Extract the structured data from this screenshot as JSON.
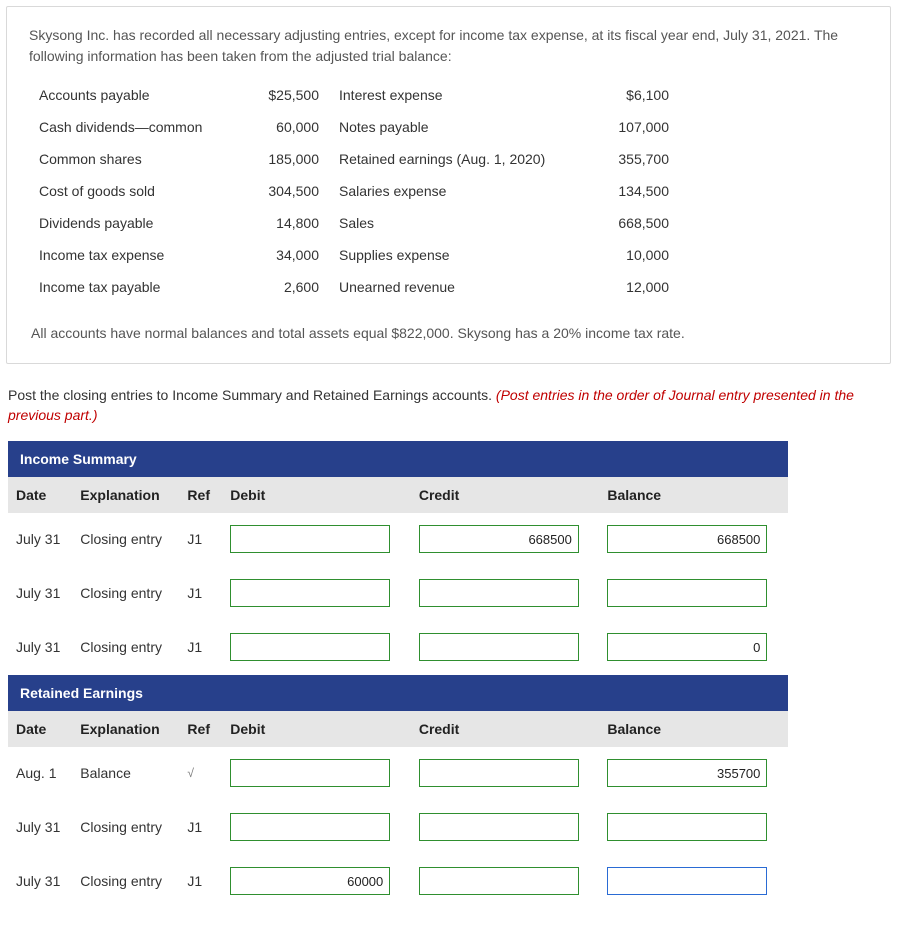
{
  "intro": "Skysong Inc. has recorded all necessary adjusting entries, except for income tax expense, at its fiscal year end, July 31, 2021. The following information has been taken from the adjusted trial balance:",
  "trial_balance": {
    "left": [
      {
        "label": "Accounts payable",
        "value": "$25,500"
      },
      {
        "label": "Cash dividends—common",
        "value": "60,000"
      },
      {
        "label": "Common shares",
        "value": "185,000"
      },
      {
        "label": "Cost of goods sold",
        "value": "304,500"
      },
      {
        "label": "Dividends payable",
        "value": "14,800"
      },
      {
        "label": "Income tax expense",
        "value": "34,000"
      },
      {
        "label": "Income tax payable",
        "value": "2,600"
      }
    ],
    "right": [
      {
        "label": "Interest expense",
        "value": "$6,100"
      },
      {
        "label": "Notes payable",
        "value": "107,000"
      },
      {
        "label": "Retained earnings (Aug. 1, 2020)",
        "value": "355,700"
      },
      {
        "label": "Salaries expense",
        "value": "134,500"
      },
      {
        "label": "Sales",
        "value": "668,500"
      },
      {
        "label": "Supplies expense",
        "value": "10,000"
      },
      {
        "label": "Unearned revenue",
        "value": "12,000"
      }
    ]
  },
  "note": "All accounts have normal balances and total assets equal $822,000. Skysong has a 20% income tax rate.",
  "instruction": {
    "black": "Post the closing entries to Income Summary and Retained Earnings accounts. ",
    "red": "(Post entries in the order of Journal entry presented in the previous part.)"
  },
  "sections": [
    {
      "title": "Income Summary",
      "headers": {
        "date": "Date",
        "expl": "Explanation",
        "ref": "Ref",
        "debit": "Debit",
        "credit": "Credit",
        "balance": "Balance"
      },
      "rows": [
        {
          "date": "July 31",
          "expl": "Closing entry",
          "ref": "J1",
          "debit": "",
          "credit": "668500",
          "balance": "668500",
          "debit_class": "green",
          "credit_class": "green",
          "balance_class": "green"
        },
        {
          "date": "July 31",
          "expl": "Closing entry",
          "ref": "J1",
          "debit": "",
          "credit": "",
          "balance": "",
          "debit_class": "green",
          "credit_class": "green",
          "balance_class": "green"
        },
        {
          "date": "July 31",
          "expl": "Closing entry",
          "ref": "J1",
          "debit": "",
          "credit": "",
          "balance": "0",
          "debit_class": "green",
          "credit_class": "green",
          "balance_class": "green"
        }
      ]
    },
    {
      "title": "Retained Earnings",
      "headers": {
        "date": "Date",
        "expl": "Explanation",
        "ref": "Ref",
        "debit": "Debit",
        "credit": "Credit",
        "balance": "Balance"
      },
      "rows": [
        {
          "date": "Aug. 1",
          "expl": "Balance",
          "ref": "√",
          "ref_class": "checkmark",
          "debit": "",
          "credit": "",
          "balance": "355700",
          "debit_class": "green",
          "credit_class": "green",
          "balance_class": "green"
        },
        {
          "date": "July 31",
          "expl": "Closing entry",
          "ref": "J1",
          "debit": "",
          "credit": "",
          "balance": "",
          "debit_class": "green",
          "credit_class": "green",
          "balance_class": "green"
        },
        {
          "date": "July 31",
          "expl": "Closing entry",
          "ref": "J1",
          "debit": "60000",
          "credit": "",
          "balance": "",
          "debit_class": "green",
          "credit_class": "green",
          "balance_class": "focus"
        }
      ]
    }
  ]
}
